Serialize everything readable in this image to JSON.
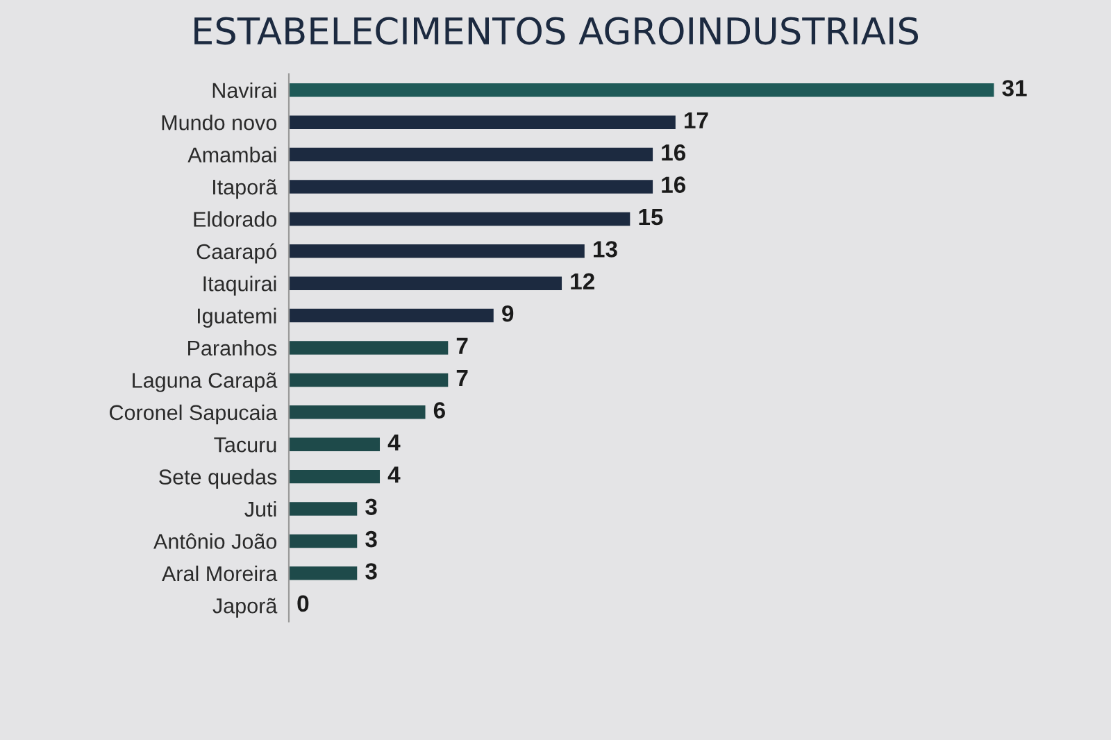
{
  "chart_data": {
    "type": "bar",
    "orientation": "horizontal",
    "title": "ESTABELECIMENTOS AGROINDUSTRIAIS",
    "categories": [
      "Navirai",
      "Mundo novo",
      "Amambai",
      "Itaporã",
      "Eldorado",
      "Caarapó",
      "Itaquirai",
      "Iguatemi",
      "Paranhos",
      "Laguna Carapã",
      "Coronel Sapucaia",
      "Tacuru",
      "Sete quedas",
      "Juti",
      "Antônio João",
      "Aral Moreira",
      "Japorã"
    ],
    "values": [
      31,
      17,
      16,
      16,
      15,
      13,
      12,
      9,
      7,
      7,
      6,
      4,
      4,
      3,
      3,
      3,
      0
    ],
    "colors": [
      "#1f5a58",
      "#1c2a40",
      "#1c2a40",
      "#1c2a40",
      "#1c2a40",
      "#1c2a40",
      "#1c2a40",
      "#1c2a40",
      "#1e4a4a",
      "#1e4a4a",
      "#1e4a4a",
      "#1e4a4a",
      "#1e4a4a",
      "#1e4a4a",
      "#1e4a4a",
      "#1e4a4a",
      "#1e4a4a"
    ],
    "data_labels": true,
    "grid": false,
    "legend": false
  }
}
